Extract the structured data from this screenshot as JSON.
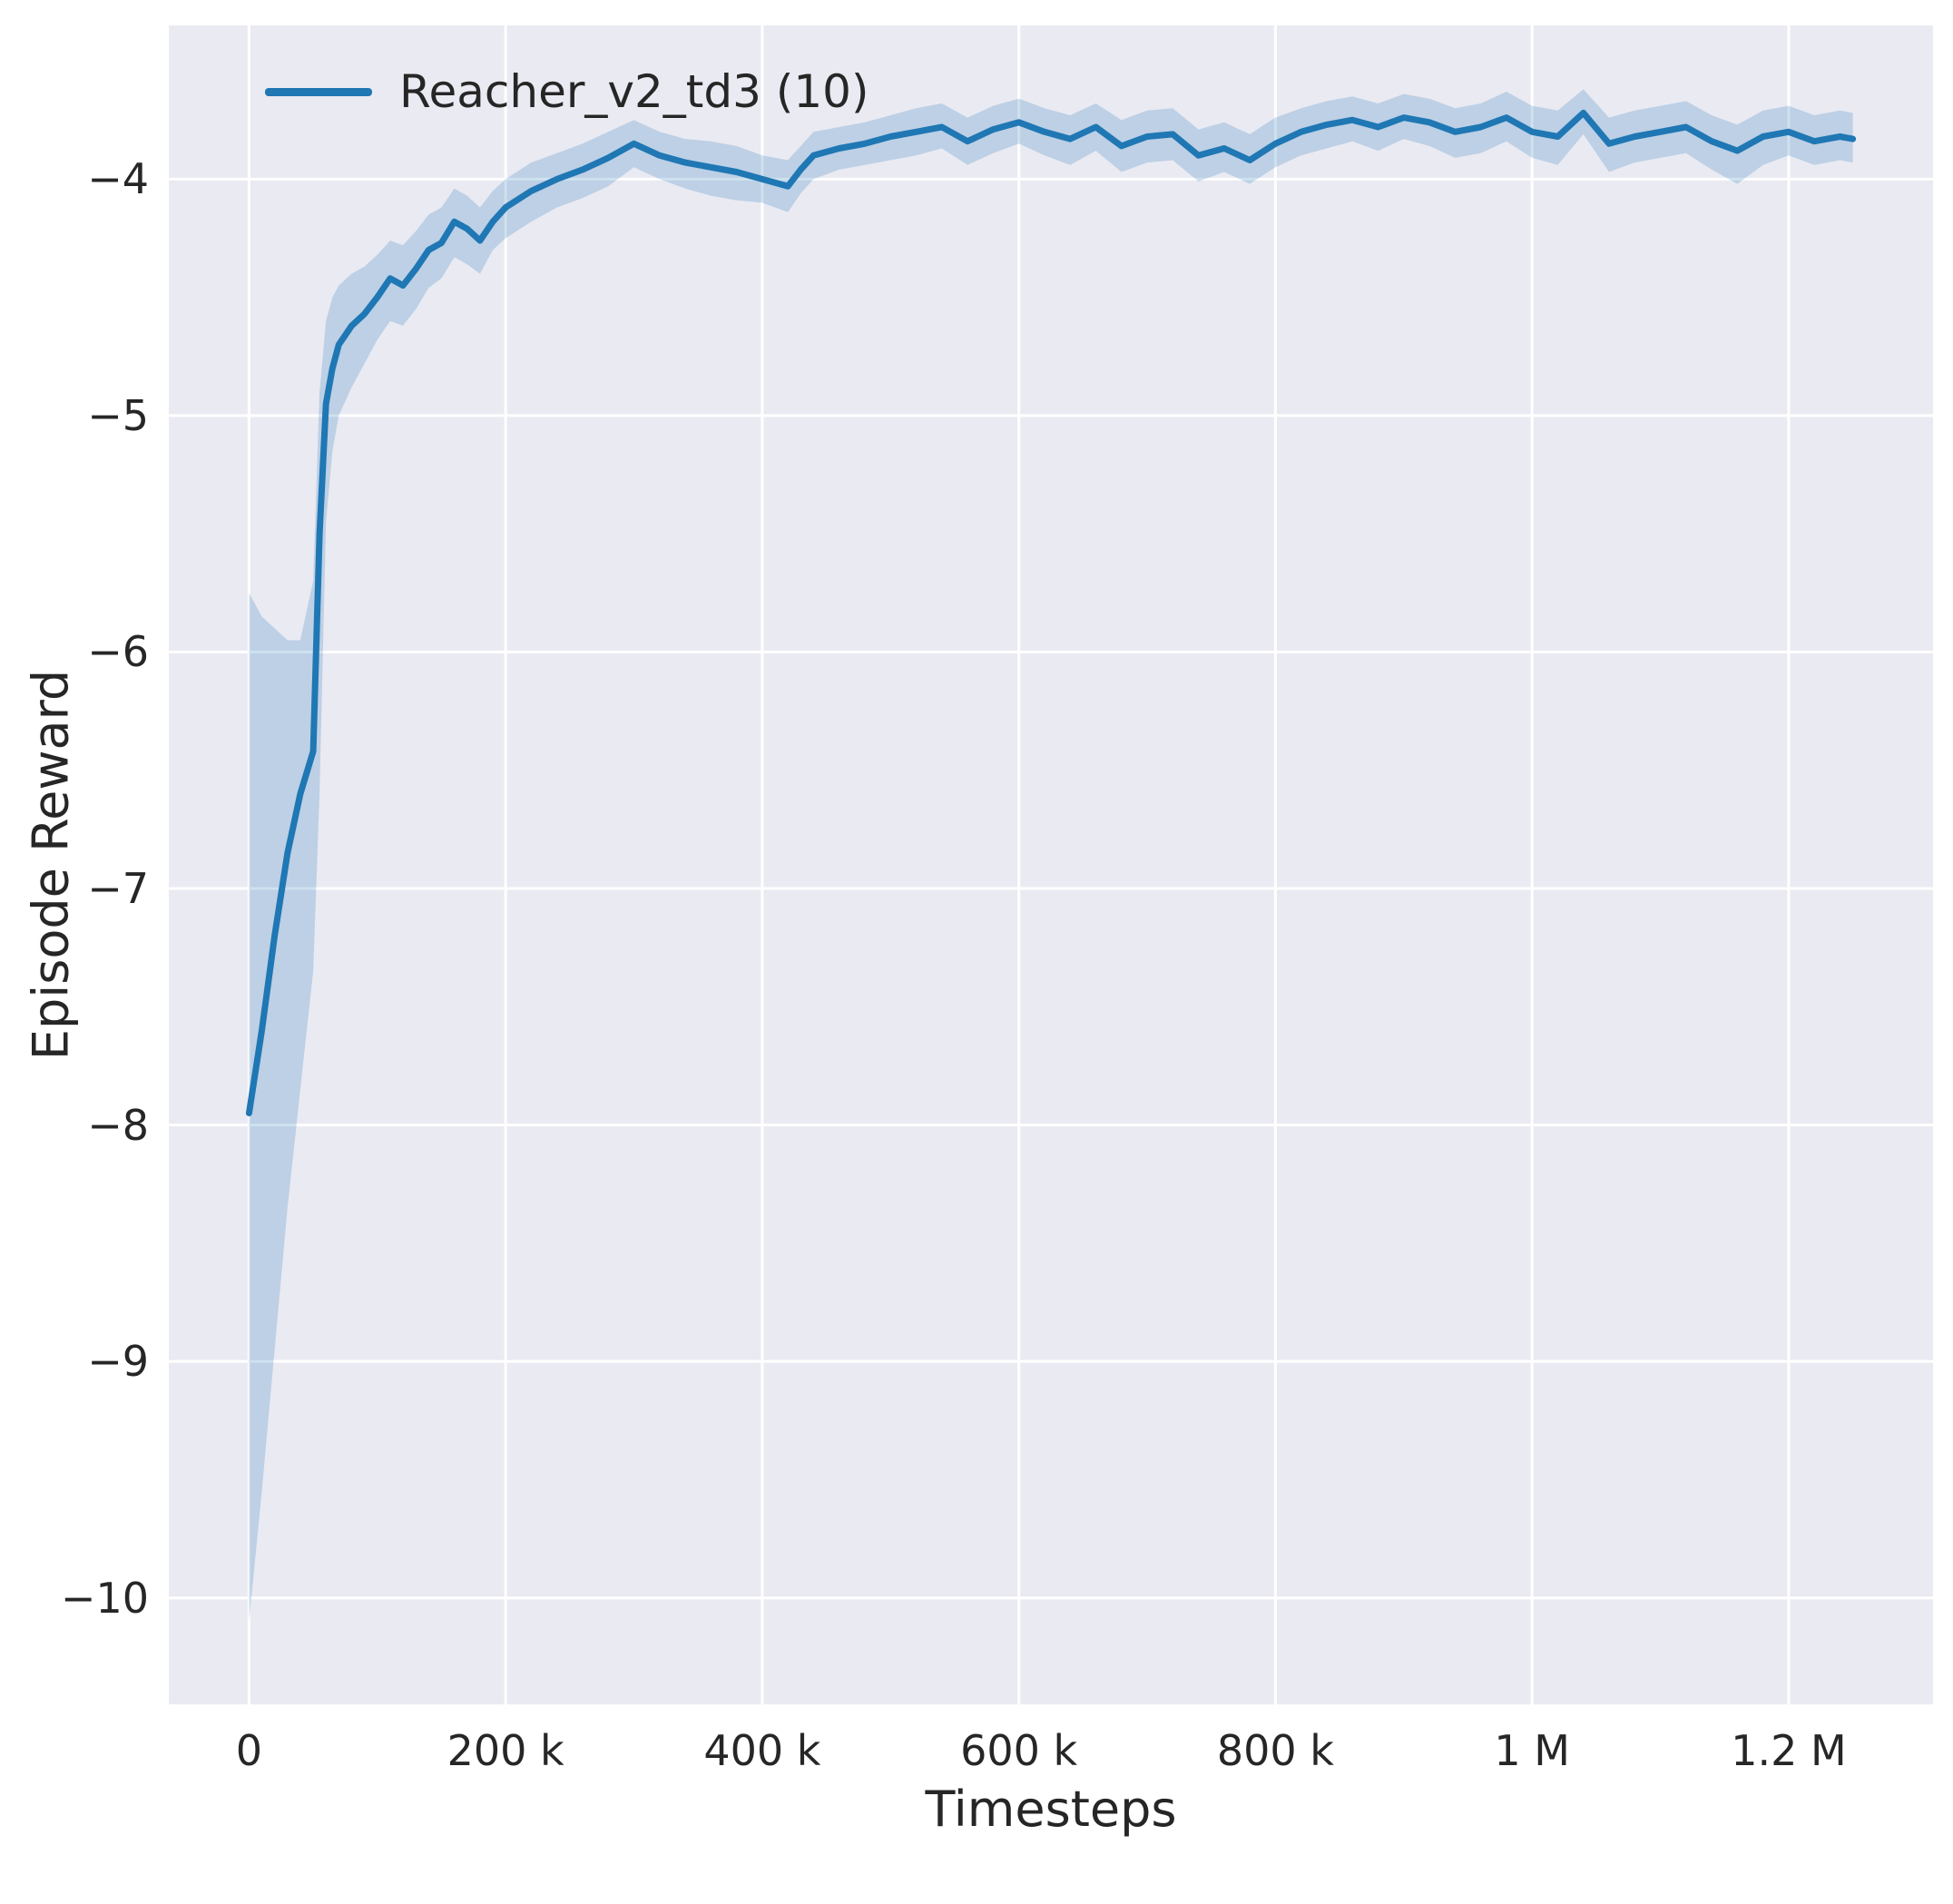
{
  "chart_data": {
    "type": "line",
    "title": "",
    "xlabel": "Timesteps",
    "ylabel": "Episode Reward",
    "grid": true,
    "legend_position": "upper left",
    "xlim": [
      -62500,
      1312500
    ],
    "ylim": [
      -10.45,
      -3.35
    ],
    "x_ticks": [
      {
        "value": 0,
        "label": "0"
      },
      {
        "value": 200000,
        "label": "200 k"
      },
      {
        "value": 400000,
        "label": "400 k"
      },
      {
        "value": 600000,
        "label": "600 k"
      },
      {
        "value": 800000,
        "label": "800 k"
      },
      {
        "value": 1000000,
        "label": "1 M"
      },
      {
        "value": 1200000,
        "label": "1.2 M"
      }
    ],
    "y_ticks": [
      {
        "value": -4,
        "label": "−4"
      },
      {
        "value": -5,
        "label": "−5"
      },
      {
        "value": -6,
        "label": "−6"
      },
      {
        "value": -7,
        "label": "−7"
      },
      {
        "value": -8,
        "label": "−8"
      },
      {
        "value": -9,
        "label": "−9"
      },
      {
        "value": -10,
        "label": "−10"
      }
    ],
    "colors": {
      "line": "#1f77b4",
      "band": "#1f77b4",
      "band_opacity": 0.22,
      "background": "#eaeaf2",
      "grid": "#ffffff",
      "text": "#262626"
    },
    "series": [
      {
        "name": "Reacher_v2_td3 (10)",
        "x": [
          0,
          10000,
          20000,
          30000,
          40000,
          50000,
          55000,
          60000,
          65000,
          70000,
          80000,
          90000,
          100000,
          110000,
          120000,
          130000,
          140000,
          150000,
          160000,
          170000,
          180000,
          190000,
          200000,
          220000,
          240000,
          260000,
          280000,
          300000,
          320000,
          340000,
          360000,
          380000,
          400000,
          420000,
          430000,
          440000,
          460000,
          480000,
          500000,
          520000,
          540000,
          560000,
          580000,
          600000,
          620000,
          640000,
          660000,
          680000,
          700000,
          720000,
          740000,
          760000,
          780000,
          800000,
          820000,
          840000,
          860000,
          880000,
          900000,
          920000,
          940000,
          960000,
          980000,
          1000000,
          1020000,
          1040000,
          1060000,
          1080000,
          1100000,
          1120000,
          1140000,
          1160000,
          1180000,
          1200000,
          1220000,
          1240000,
          1250000
        ],
        "y": [
          -7.95,
          -7.6,
          -7.2,
          -6.85,
          -6.6,
          -6.42,
          -5.5,
          -4.95,
          -4.8,
          -4.7,
          -4.62,
          -4.57,
          -4.5,
          -4.42,
          -4.45,
          -4.38,
          -4.3,
          -4.27,
          -4.18,
          -4.21,
          -4.26,
          -4.18,
          -4.12,
          -4.05,
          -4.0,
          -3.96,
          -3.91,
          -3.85,
          -3.9,
          -3.93,
          -3.95,
          -3.97,
          -4.0,
          -4.03,
          -3.96,
          -3.9,
          -3.87,
          -3.85,
          -3.82,
          -3.8,
          -3.78,
          -3.84,
          -3.79,
          -3.76,
          -3.8,
          -3.83,
          -3.78,
          -3.86,
          -3.82,
          -3.81,
          -3.9,
          -3.87,
          -3.92,
          -3.85,
          -3.8,
          -3.77,
          -3.75,
          -3.78,
          -3.74,
          -3.76,
          -3.8,
          -3.78,
          -3.74,
          -3.8,
          -3.82,
          -3.72,
          -3.85,
          -3.82,
          -3.8,
          -3.78,
          -3.84,
          -3.88,
          -3.82,
          -3.8,
          -3.84,
          -3.82,
          -3.83
        ],
        "band_low": [
          -10.1,
          -9.55,
          -8.95,
          -8.35,
          -7.85,
          -7.35,
          -6.6,
          -5.45,
          -5.15,
          -5.0,
          -4.88,
          -4.78,
          -4.68,
          -4.6,
          -4.62,
          -4.55,
          -4.46,
          -4.42,
          -4.33,
          -4.36,
          -4.4,
          -4.3,
          -4.25,
          -4.18,
          -4.12,
          -4.08,
          -4.03,
          -3.95,
          -4.0,
          -4.04,
          -4.07,
          -4.09,
          -4.1,
          -4.14,
          -4.06,
          -4.0,
          -3.96,
          -3.94,
          -3.92,
          -3.9,
          -3.87,
          -3.94,
          -3.89,
          -3.85,
          -3.9,
          -3.94,
          -3.88,
          -3.97,
          -3.93,
          -3.92,
          -4.01,
          -3.97,
          -4.02,
          -3.95,
          -3.9,
          -3.87,
          -3.84,
          -3.88,
          -3.83,
          -3.86,
          -3.91,
          -3.89,
          -3.84,
          -3.91,
          -3.94,
          -3.81,
          -3.97,
          -3.93,
          -3.91,
          -3.89,
          -3.96,
          -4.02,
          -3.94,
          -3.9,
          -3.94,
          -3.92,
          -3.93
        ],
        "band_high": [
          -5.75,
          -5.85,
          -5.9,
          -5.95,
          -5.95,
          -5.7,
          -4.9,
          -4.6,
          -4.5,
          -4.45,
          -4.4,
          -4.37,
          -4.32,
          -4.26,
          -4.28,
          -4.22,
          -4.15,
          -4.12,
          -4.04,
          -4.07,
          -4.12,
          -4.05,
          -4.0,
          -3.93,
          -3.89,
          -3.85,
          -3.8,
          -3.75,
          -3.8,
          -3.83,
          -3.84,
          -3.86,
          -3.9,
          -3.92,
          -3.86,
          -3.8,
          -3.78,
          -3.76,
          -3.73,
          -3.7,
          -3.68,
          -3.74,
          -3.69,
          -3.66,
          -3.7,
          -3.73,
          -3.68,
          -3.75,
          -3.71,
          -3.7,
          -3.79,
          -3.76,
          -3.81,
          -3.74,
          -3.7,
          -3.67,
          -3.65,
          -3.68,
          -3.64,
          -3.66,
          -3.7,
          -3.68,
          -3.63,
          -3.69,
          -3.71,
          -3.62,
          -3.74,
          -3.71,
          -3.69,
          -3.67,
          -3.73,
          -3.77,
          -3.71,
          -3.69,
          -3.73,
          -3.71,
          -3.72
        ]
      }
    ]
  }
}
